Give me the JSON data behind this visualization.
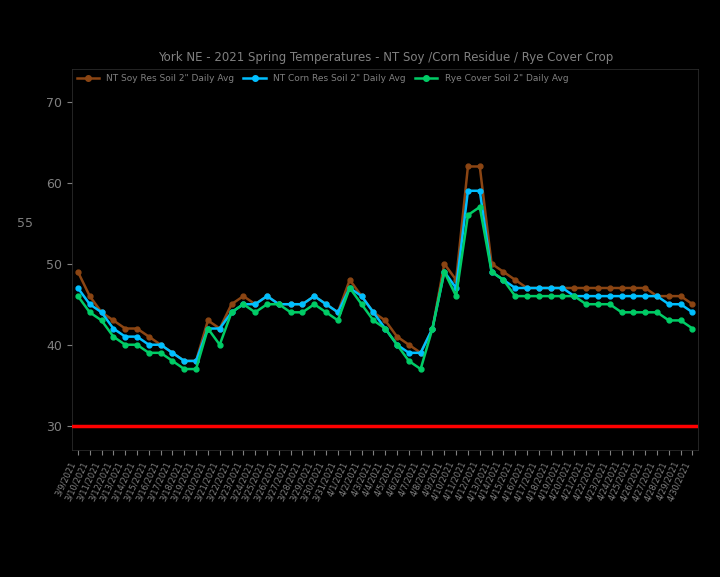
{
  "title": "York NE - 2021 Spring Temperatures - NT Soy /Corn Residue / Rye Cover Crop",
  "legend_labels": [
    "NT Soy Res Soil 2\" Daily Avg",
    "NT Corn Res Soil 2\" Daily Avg",
    "Rye Cover Soil 2\" Daily Avg"
  ],
  "line_colors": [
    "#8B4513",
    "#00BFFF",
    "#00CC66"
  ],
  "background_color": "#000000",
  "text_color": "#808080",
  "title_color": "#808080",
  "red_line_y": 30,
  "ylim": [
    27,
    74
  ],
  "yticks": [
    30,
    40,
    50,
    60,
    70
  ],
  "ytick_extra": 55,
  "dates": [
    "3/9/2021",
    "3/10/2021",
    "3/11/2021",
    "3/12/2021",
    "3/13/2021",
    "3/14/2021",
    "3/15/2021",
    "3/16/2021",
    "3/17/2021",
    "3/18/2021",
    "3/19/2021",
    "3/20/2021",
    "3/21/2021",
    "3/22/2021",
    "3/23/2021",
    "3/24/2021",
    "3/25/2021",
    "3/26/2021",
    "3/27/2021",
    "3/28/2021",
    "3/29/2021",
    "3/30/2021",
    "3/31/2021",
    "4/1/2021",
    "4/2/2021",
    "4/3/2021",
    "4/4/2021",
    "4/5/2021",
    "4/6/2021",
    "4/7/2021",
    "4/8/2021",
    "4/9/2021",
    "4/10/2021",
    "4/11/2021",
    "4/12/2021",
    "4/13/2021",
    "4/14/2021",
    "4/15/2021",
    "4/16/2021",
    "4/17/2021",
    "4/18/2021",
    "4/19/2021",
    "4/20/2021",
    "4/21/2021",
    "4/22/2021",
    "4/23/2021",
    "4/24/2021",
    "4/25/2021",
    "4/26/2021",
    "4/27/2021",
    "4/28/2021",
    "4/29/2021",
    "4/30/2021"
  ],
  "soy_values": [
    49,
    46,
    44,
    43,
    42,
    42,
    41,
    40,
    39,
    38,
    38,
    43,
    42,
    45,
    46,
    45,
    46,
    45,
    45,
    45,
    46,
    45,
    44,
    48,
    46,
    44,
    43,
    41,
    40,
    39,
    42,
    50,
    48,
    62,
    62,
    50,
    49,
    48,
    47,
    47,
    47,
    47,
    47,
    47,
    47,
    47,
    47,
    47,
    47,
    46,
    46,
    46,
    45
  ],
  "corn_values": [
    47,
    45,
    44,
    42,
    41,
    41,
    40,
    40,
    39,
    38,
    38,
    42,
    42,
    44,
    45,
    45,
    46,
    45,
    45,
    45,
    46,
    45,
    44,
    47,
    46,
    44,
    42,
    40,
    39,
    39,
    42,
    49,
    47,
    59,
    59,
    49,
    48,
    47,
    47,
    47,
    47,
    47,
    46,
    46,
    46,
    46,
    46,
    46,
    46,
    46,
    45,
    45,
    44
  ],
  "rye_values": [
    46,
    44,
    43,
    41,
    40,
    40,
    39,
    39,
    38,
    37,
    37,
    42,
    40,
    44,
    45,
    44,
    45,
    45,
    44,
    44,
    45,
    44,
    43,
    47,
    45,
    43,
    42,
    40,
    38,
    37,
    42,
    49,
    46,
    56,
    57,
    49,
    48,
    46,
    46,
    46,
    46,
    46,
    46,
    45,
    45,
    45,
    44,
    44,
    44,
    44,
    43,
    43,
    42
  ]
}
